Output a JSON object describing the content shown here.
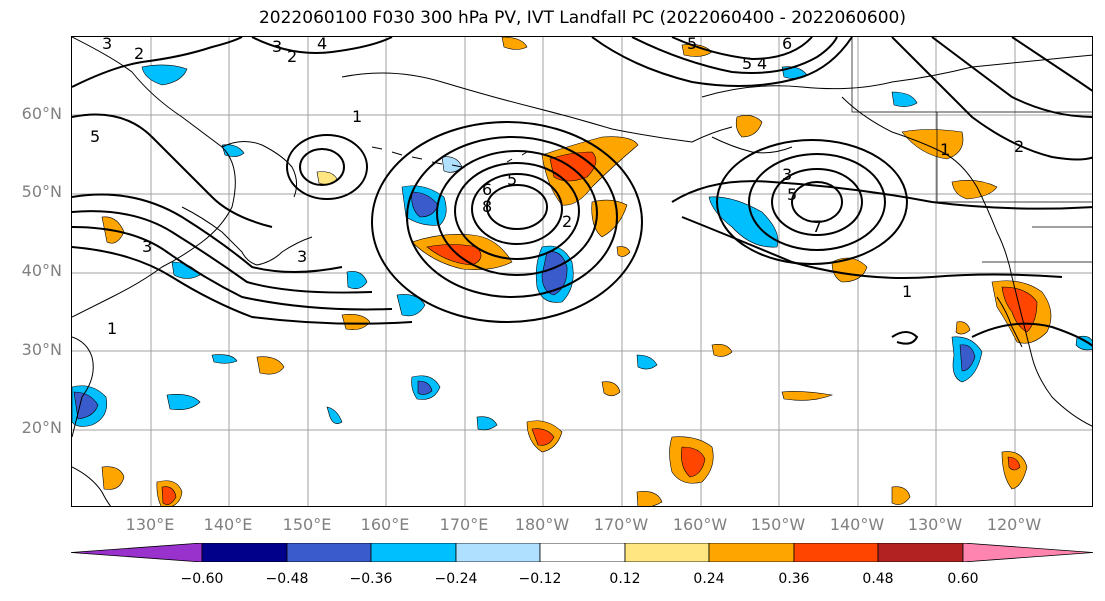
{
  "title": "2022060100 F030 300 hPa PV, IVT Landfall PC (2022060400 - 2022060600)",
  "lat_labels": [
    "60°N",
    "50°N",
    "40°N",
    "30°N",
    "20°N"
  ],
  "lon_labels": [
    "130°E",
    "140°E",
    "150°E",
    "160°E",
    "170°E",
    "180°W",
    "170°W",
    "160°W",
    "150°W",
    "140°W",
    "130°W",
    "120°W"
  ],
  "contour_labels": [
    "1",
    "2",
    "3",
    "4",
    "5",
    "6",
    "7",
    "8"
  ],
  "colorbar": {
    "ticks": [
      "−0.60",
      "−0.48",
      "−0.36",
      "−0.24",
      "−0.12",
      "0.12",
      "0.24",
      "0.36",
      "0.48",
      "0.60"
    ],
    "colors": [
      "#9932CC",
      "#00008B",
      "#3A5BCB",
      "#00BFFF",
      "#B0E0FF",
      "#FFFFFF",
      "#FFE680",
      "#FFA500",
      "#FF4500",
      "#B22222",
      "#FF85B0"
    ]
  }
}
